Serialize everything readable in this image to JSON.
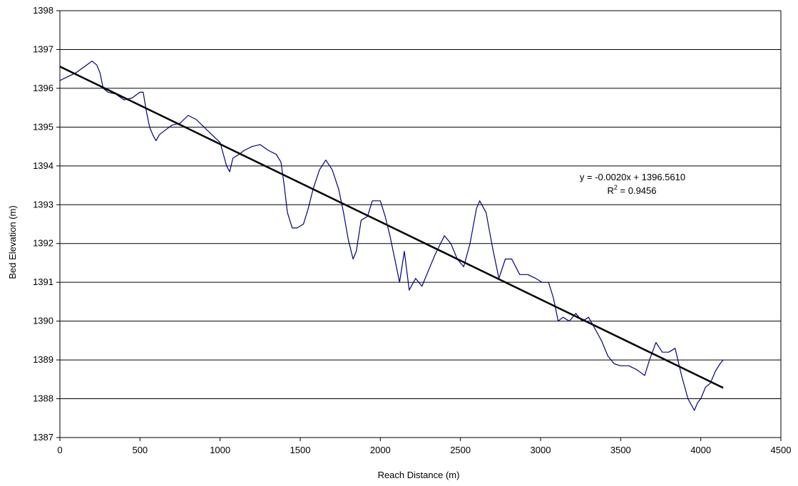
{
  "chart_data": {
    "type": "line",
    "xlabel": "Reach Distance (m)",
    "ylabel": "Bed Elevation (m)",
    "xlim": [
      0,
      4500
    ],
    "ylim": [
      1387,
      1398
    ],
    "x_ticks": [
      0,
      500,
      1000,
      1500,
      2000,
      2500,
      3000,
      3500,
      4000,
      4500
    ],
    "y_ticks": [
      1387,
      1388,
      1389,
      1390,
      1391,
      1392,
      1393,
      1394,
      1395,
      1396,
      1397,
      1398
    ],
    "grid": "horizontal",
    "legend": "none",
    "series": [
      {
        "color": "#000080",
        "points": [
          [
            0,
            1396.2
          ],
          [
            50,
            1396.3
          ],
          [
            100,
            1396.4
          ],
          [
            150,
            1396.55
          ],
          [
            200,
            1396.7
          ],
          [
            230,
            1396.6
          ],
          [
            250,
            1396.4
          ],
          [
            270,
            1396.0
          ],
          [
            300,
            1395.9
          ],
          [
            350,
            1395.85
          ],
          [
            400,
            1395.7
          ],
          [
            450,
            1395.75
          ],
          [
            500,
            1395.9
          ],
          [
            520,
            1395.9
          ],
          [
            540,
            1395.4
          ],
          [
            560,
            1395.0
          ],
          [
            580,
            1394.8
          ],
          [
            600,
            1394.65
          ],
          [
            620,
            1394.8
          ],
          [
            650,
            1394.9
          ],
          [
            700,
            1395.05
          ],
          [
            750,
            1395.1
          ],
          [
            800,
            1395.3
          ],
          [
            850,
            1395.2
          ],
          [
            900,
            1395.0
          ],
          [
            950,
            1394.8
          ],
          [
            1000,
            1394.6
          ],
          [
            1020,
            1394.3
          ],
          [
            1040,
            1394.0
          ],
          [
            1060,
            1393.85
          ],
          [
            1080,
            1394.2
          ],
          [
            1120,
            1394.3
          ],
          [
            1150,
            1394.4
          ],
          [
            1200,
            1394.5
          ],
          [
            1250,
            1394.55
          ],
          [
            1300,
            1394.4
          ],
          [
            1350,
            1394.3
          ],
          [
            1380,
            1394.1
          ],
          [
            1400,
            1393.5
          ],
          [
            1420,
            1392.8
          ],
          [
            1450,
            1392.4
          ],
          [
            1480,
            1392.4
          ],
          [
            1520,
            1392.5
          ],
          [
            1550,
            1392.9
          ],
          [
            1580,
            1393.4
          ],
          [
            1620,
            1393.9
          ],
          [
            1660,
            1394.15
          ],
          [
            1700,
            1393.9
          ],
          [
            1740,
            1393.4
          ],
          [
            1770,
            1392.8
          ],
          [
            1800,
            1392.1
          ],
          [
            1830,
            1391.6
          ],
          [
            1850,
            1391.8
          ],
          [
            1880,
            1392.6
          ],
          [
            1920,
            1392.7
          ],
          [
            1950,
            1393.1
          ],
          [
            2000,
            1393.1
          ],
          [
            2030,
            1392.7
          ],
          [
            2060,
            1392.2
          ],
          [
            2090,
            1391.6
          ],
          [
            2120,
            1391.0
          ],
          [
            2150,
            1391.8
          ],
          [
            2180,
            1390.8
          ],
          [
            2220,
            1391.1
          ],
          [
            2260,
            1390.9
          ],
          [
            2300,
            1391.3
          ],
          [
            2340,
            1391.7
          ],
          [
            2400,
            1392.2
          ],
          [
            2440,
            1392.0
          ],
          [
            2480,
            1391.6
          ],
          [
            2520,
            1391.4
          ],
          [
            2560,
            1392.0
          ],
          [
            2600,
            1392.9
          ],
          [
            2620,
            1393.1
          ],
          [
            2660,
            1392.8
          ],
          [
            2700,
            1391.9
          ],
          [
            2740,
            1391.1
          ],
          [
            2780,
            1391.6
          ],
          [
            2820,
            1391.6
          ],
          [
            2870,
            1391.2
          ],
          [
            2920,
            1391.2
          ],
          [
            2970,
            1391.1
          ],
          [
            3010,
            1391.0
          ],
          [
            3050,
            1391.0
          ],
          [
            3080,
            1390.6
          ],
          [
            3110,
            1390.0
          ],
          [
            3140,
            1390.1
          ],
          [
            3180,
            1390.0
          ],
          [
            3220,
            1390.2
          ],
          [
            3260,
            1390.0
          ],
          [
            3300,
            1390.1
          ],
          [
            3340,
            1389.8
          ],
          [
            3380,
            1389.5
          ],
          [
            3420,
            1389.1
          ],
          [
            3460,
            1388.9
          ],
          [
            3500,
            1388.85
          ],
          [
            3550,
            1388.85
          ],
          [
            3600,
            1388.75
          ],
          [
            3650,
            1388.6
          ],
          [
            3680,
            1389.0
          ],
          [
            3720,
            1389.45
          ],
          [
            3760,
            1389.2
          ],
          [
            3800,
            1389.2
          ],
          [
            3840,
            1389.3
          ],
          [
            3880,
            1388.6
          ],
          [
            3920,
            1388.0
          ],
          [
            3960,
            1387.7
          ],
          [
            3980,
            1387.9
          ],
          [
            4000,
            1388.0
          ],
          [
            4030,
            1388.3
          ],
          [
            4060,
            1388.4
          ],
          [
            4090,
            1388.7
          ],
          [
            4120,
            1388.9
          ],
          [
            4140,
            1389.0
          ]
        ]
      },
      {
        "color": "#000000",
        "trendline": true,
        "points": [
          [
            0,
            1396.561
          ],
          [
            4140,
            1388.281
          ]
        ]
      }
    ],
    "annotations": [
      {
        "text": "y = -0.0020x + 1396.5610"
      },
      {
        "text": "R",
        "sup": "2",
        "rest": " = 0.9456"
      }
    ]
  }
}
